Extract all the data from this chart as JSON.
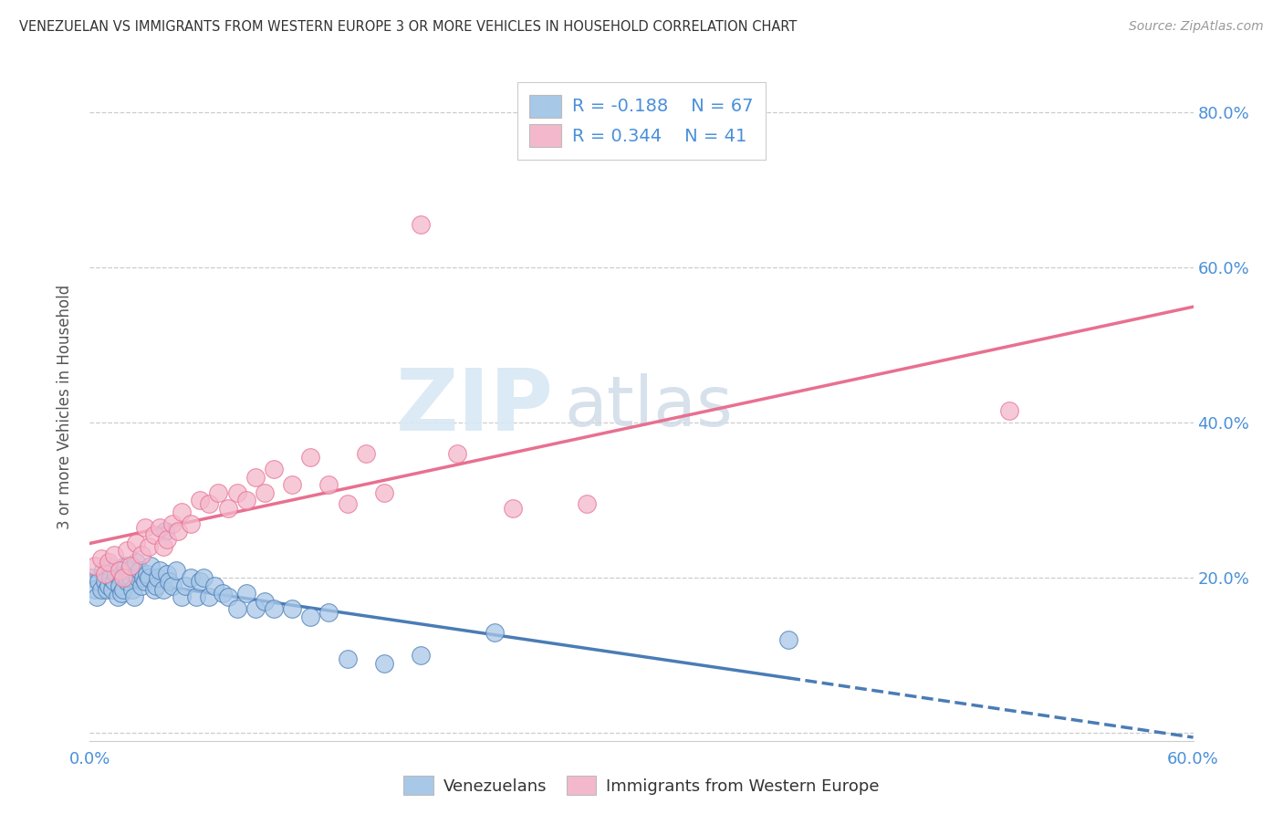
{
  "title": "VENEZUELAN VS IMMIGRANTS FROM WESTERN EUROPE 3 OR MORE VEHICLES IN HOUSEHOLD CORRELATION CHART",
  "source": "Source: ZipAtlas.com",
  "ylabel": "3 or more Vehicles in Household",
  "xlim": [
    0.0,
    0.6
  ],
  "ylim": [
    -0.01,
    0.85
  ],
  "legend_r1_label": "R = -0.188",
  "legend_n1_label": "N = 67",
  "legend_r2_label": "R = 0.344",
  "legend_n2_label": "N = 41",
  "color_blue": "#a8c8e8",
  "color_pink": "#f4b8cc",
  "color_blue_line": "#4a7cb5",
  "color_pink_line": "#e87090",
  "venezuelan_x": [
    0.001,
    0.003,
    0.004,
    0.005,
    0.006,
    0.007,
    0.008,
    0.009,
    0.01,
    0.01,
    0.011,
    0.012,
    0.013,
    0.014,
    0.015,
    0.016,
    0.017,
    0.018,
    0.019,
    0.02,
    0.02,
    0.021,
    0.022,
    0.023,
    0.024,
    0.025,
    0.026,
    0.027,
    0.028,
    0.029,
    0.03,
    0.031,
    0.032,
    0.033,
    0.035,
    0.036,
    0.037,
    0.038,
    0.04,
    0.041,
    0.042,
    0.043,
    0.045,
    0.047,
    0.05,
    0.052,
    0.055,
    0.058,
    0.06,
    0.062,
    0.065,
    0.068,
    0.072,
    0.075,
    0.08,
    0.085,
    0.09,
    0.095,
    0.1,
    0.11,
    0.12,
    0.13,
    0.14,
    0.16,
    0.18,
    0.22,
    0.38
  ],
  "venezuelan_y": [
    0.2,
    0.185,
    0.175,
    0.195,
    0.185,
    0.21,
    0.195,
    0.185,
    0.215,
    0.19,
    0.2,
    0.185,
    0.195,
    0.205,
    0.175,
    0.19,
    0.18,
    0.185,
    0.215,
    0.195,
    0.2,
    0.21,
    0.2,
    0.185,
    0.175,
    0.22,
    0.2,
    0.21,
    0.19,
    0.2,
    0.195,
    0.205,
    0.2,
    0.215,
    0.185,
    0.19,
    0.2,
    0.21,
    0.185,
    0.26,
    0.205,
    0.195,
    0.19,
    0.21,
    0.175,
    0.19,
    0.2,
    0.175,
    0.195,
    0.2,
    0.175,
    0.19,
    0.18,
    0.175,
    0.16,
    0.18,
    0.16,
    0.17,
    0.16,
    0.16,
    0.15,
    0.155,
    0.095,
    0.09,
    0.1,
    0.13,
    0.12
  ],
  "western_europe_x": [
    0.003,
    0.006,
    0.008,
    0.01,
    0.013,
    0.016,
    0.018,
    0.02,
    0.022,
    0.025,
    0.028,
    0.03,
    0.032,
    0.035,
    0.038,
    0.04,
    0.042,
    0.045,
    0.048,
    0.05,
    0.055,
    0.06,
    0.065,
    0.07,
    0.075,
    0.08,
    0.085,
    0.09,
    0.095,
    0.1,
    0.11,
    0.12,
    0.13,
    0.14,
    0.15,
    0.16,
    0.18,
    0.2,
    0.23,
    0.27,
    0.5
  ],
  "western_europe_y": [
    0.215,
    0.225,
    0.205,
    0.22,
    0.23,
    0.21,
    0.2,
    0.235,
    0.215,
    0.245,
    0.23,
    0.265,
    0.24,
    0.255,
    0.265,
    0.24,
    0.25,
    0.27,
    0.26,
    0.285,
    0.27,
    0.3,
    0.295,
    0.31,
    0.29,
    0.31,
    0.3,
    0.33,
    0.31,
    0.34,
    0.32,
    0.355,
    0.32,
    0.295,
    0.36,
    0.31,
    0.655,
    0.36,
    0.29,
    0.295,
    0.415
  ]
}
